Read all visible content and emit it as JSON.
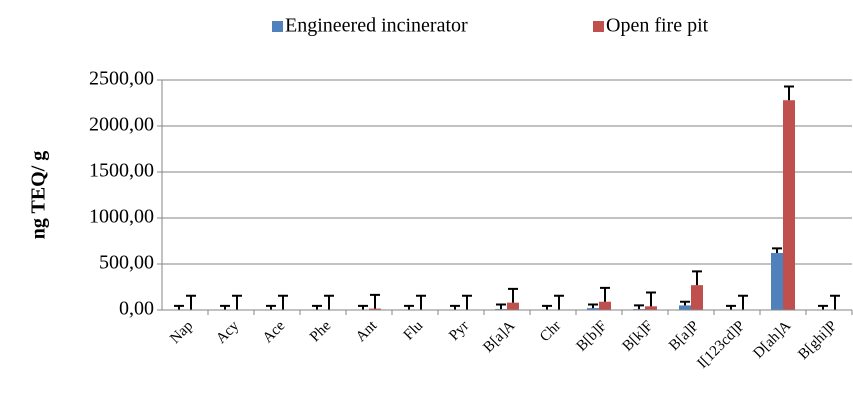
{
  "chart_data": {
    "type": "bar",
    "y_label": "ng TEQ/ g",
    "categories": [
      "Nap",
      "Acy",
      "Ace",
      "Phe",
      "Ant",
      "Flu",
      "Pyr",
      "B[a]A",
      "Chr",
      "B[b]F",
      "B[k]F",
      "B[a]P",
      "I[123cd]P",
      "D[ah]A",
      "B[ghi]P"
    ],
    "series": [
      {
        "name": "Engineered incinerator",
        "color": "#4f81bd",
        "values": [
          5,
          5,
          5,
          5,
          5,
          5,
          5,
          10,
          5,
          20,
          10,
          50,
          5,
          620,
          5
        ],
        "errors": [
          40,
          40,
          40,
          40,
          40,
          40,
          40,
          50,
          40,
          40,
          40,
          40,
          40,
          50,
          40
        ]
      },
      {
        "name": "Open fire pit",
        "color": "#c0504d",
        "values": [
          5,
          5,
          5,
          5,
          15,
          5,
          5,
          80,
          5,
          90,
          40,
          270,
          5,
          2280,
          5
        ],
        "errors": [
          150,
          150,
          150,
          150,
          150,
          150,
          150,
          150,
          150,
          150,
          150,
          150,
          150,
          150,
          150
        ]
      }
    ],
    "ylim": [
      0,
      2500
    ],
    "yticks": [
      {
        "value": 0,
        "label": "0,00"
      },
      {
        "value": 500,
        "label": "500,00"
      },
      {
        "value": 1000,
        "label": "1000,00"
      },
      {
        "value": 1500,
        "label": "1500,00"
      },
      {
        "value": 2000,
        "label": "2000,00"
      },
      {
        "value": 2500,
        "label": "2500,00"
      }
    ],
    "grid": true,
    "legend": "top"
  }
}
